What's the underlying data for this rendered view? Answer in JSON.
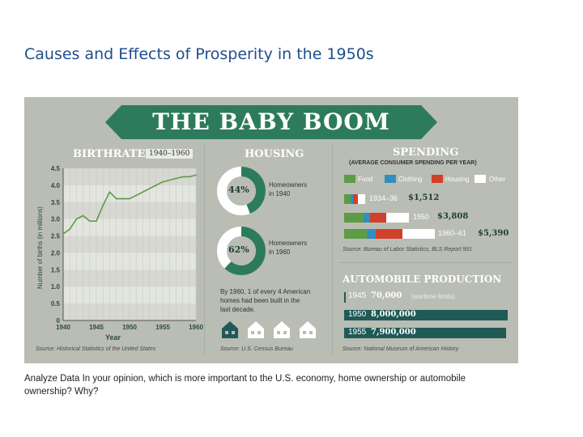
{
  "slide": {
    "title": "Causes and Effects of Prosperity in the 1950s",
    "question": "Analyze Data In your opinion, which is more important to the U.S. economy, home ownership or automobile ownership? Why?"
  },
  "infographic": {
    "banner": "THE BABY BOOM",
    "birthrate": {
      "heading": "BIRTHRATE",
      "years_badge": "1940–1960",
      "ylabel": "Number of births (in millions)",
      "xlabel": "Year",
      "yticks": [
        "4.5",
        "4.0",
        "3.5",
        "3.0",
        "2.5",
        "2.0",
        "1.5",
        "1.0",
        "0.5",
        "0"
      ],
      "xticks": [
        "1940",
        "1945",
        "1950",
        "1955",
        "1960"
      ],
      "source": "Source: Historical Statistics of the United States"
    },
    "housing": {
      "heading": "HOUSING",
      "donut1_pct": "44%",
      "donut1_label1": "Homeowners",
      "donut1_label2": "in 1940",
      "donut2_pct": "62%",
      "donut2_label1": "Homeowners",
      "donut2_label2": "in 1960",
      "note_line1": "By 1960, 1 of every 4 American",
      "note_line2": "homes had been built in the",
      "note_line3": "last decade.",
      "source": "Source: U.S. Census Bureau"
    },
    "spending": {
      "heading": "SPENDING",
      "subheading1": "(AVERAGE CONSUMER SPENDING PER YEAR)",
      "legend": [
        "Food",
        "Clothing",
        "Housing",
        "Other"
      ],
      "rows": [
        {
          "period": "1934–36",
          "value": "$1,512"
        },
        {
          "period": "1950",
          "value": "$3,808"
        },
        {
          "period": "1960–61",
          "value": "$5,390"
        }
      ],
      "source": "Source: Bureau of Labor Statistics, BLS Report 991"
    },
    "automobile": {
      "heading": "AUTOMOBILE PRODUCTION",
      "rows": [
        {
          "year": "1945",
          "value": "70,000",
          "note": "(wartime limits)"
        },
        {
          "year": "1950",
          "value": "8,000,000",
          "note": ""
        },
        {
          "year": "1955",
          "value": "7,900,000",
          "note": ""
        }
      ],
      "source": "Source: National Museum of American History"
    },
    "colors": {
      "background": "#b9bdb3",
      "banner": "#2d7b5c",
      "food": "#5e9b45",
      "clothing": "#2f8fc0",
      "housing": "#d23f2a",
      "other": "#ffffff",
      "auto_bar": "#1f5a57"
    }
  },
  "chart_data": {
    "type": "line",
    "title": "BIRTHRATE",
    "xlabel": "Year",
    "ylabel": "Number of births (in millions)",
    "x": [
      1940,
      1941,
      1942,
      1943,
      1944,
      1945,
      1946,
      1947,
      1948,
      1949,
      1950,
      1951,
      1952,
      1953,
      1954,
      1955,
      1956,
      1957,
      1958,
      1959,
      1960
    ],
    "values": [
      2.56,
      2.7,
      3.0,
      3.1,
      2.94,
      2.94,
      3.4,
      3.8,
      3.6,
      3.6,
      3.6,
      3.7,
      3.8,
      3.9,
      4.0,
      4.1,
      4.15,
      4.2,
      4.25,
      4.25,
      4.3
    ],
    "ylim": [
      0,
      4.5
    ],
    "grid": true
  }
}
